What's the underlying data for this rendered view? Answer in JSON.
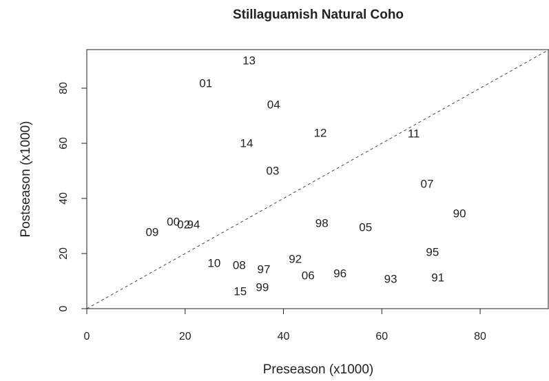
{
  "chart_data": {
    "type": "scatter",
    "title": "Stillaguamish Natural Coho",
    "x_label": "Preseason (x1000)",
    "y_label": "Postseason (x1000)",
    "series": [
      {
        "name": null,
        "color": "#222222",
        "labels": [
          "13",
          "01",
          "04",
          "12",
          "11",
          "14",
          "03",
          "07",
          "90",
          "98",
          "05",
          "00",
          "02",
          "94",
          "09",
          "95",
          "92",
          "10",
          "08",
          "97",
          "96",
          "06",
          "91",
          "93",
          "99",
          "15"
        ],
        "x": [
          33.0,
          24.2,
          38.0,
          47.5,
          66.5,
          32.5,
          37.8,
          69.2,
          75.8,
          47.8,
          56.7,
          17.6,
          19.7,
          21.7,
          13.3,
          70.3,
          42.4,
          25.9,
          31.0,
          36.0,
          51.5,
          45.0,
          71.4,
          61.8,
          35.7,
          31.2
        ],
        "values": [
          89.8,
          81.5,
          73.8,
          63.5,
          63.3,
          59.8,
          49.8,
          45.0,
          34.3,
          30.8,
          29.3,
          31.3,
          30.3,
          30.3,
          27.5,
          20.3,
          17.8,
          16.3,
          15.5,
          14.0,
          12.5,
          11.8,
          11.0,
          10.5,
          7.5,
          6.0
        ]
      }
    ],
    "xlim": [
      0,
      94
    ],
    "ylim": [
      0,
      94
    ],
    "xticks": [
      0,
      20,
      40,
      60,
      80
    ],
    "yticks": [
      0,
      20,
      40,
      60,
      80
    ],
    "reference_line": "y=x"
  }
}
